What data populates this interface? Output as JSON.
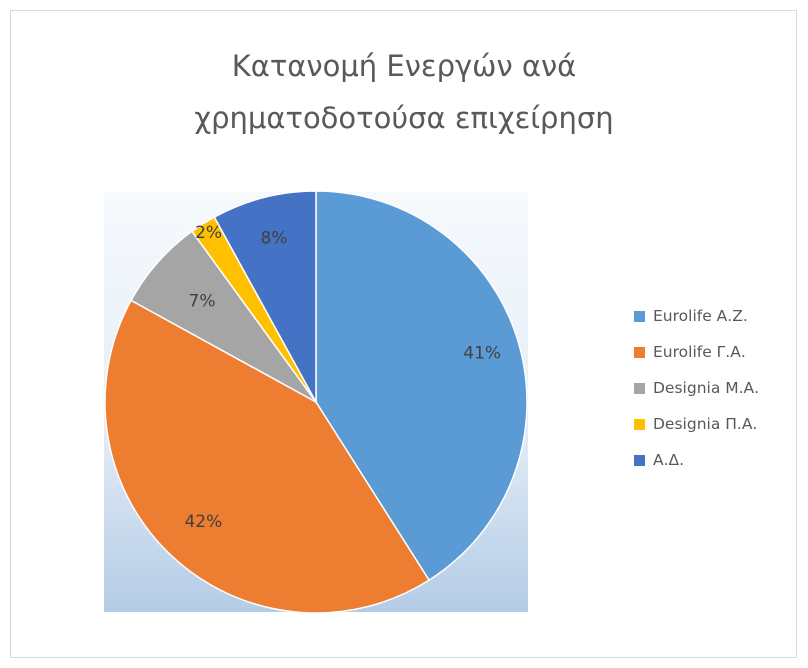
{
  "chart_data": {
    "type": "pie",
    "title_lines": [
      "Κατανομή Ενεργών ανά",
      "χρηματοδοτούσα επιχείρηση"
    ],
    "categories": [
      "Eurolife Α.Ζ.",
      "Eurolife Γ.Α.",
      "Designia Μ.Α.",
      "Designia Π.Α.",
      "Α.Δ."
    ],
    "values": [
      41,
      42,
      7,
      2,
      8
    ],
    "data_labels": [
      "41%",
      "42%",
      "7%",
      "2%",
      "8%"
    ],
    "colors": [
      "#5b9bd5",
      "#ed7d31",
      "#a5a5a5",
      "#ffc000",
      "#4472c4"
    ],
    "legend": "right"
  }
}
